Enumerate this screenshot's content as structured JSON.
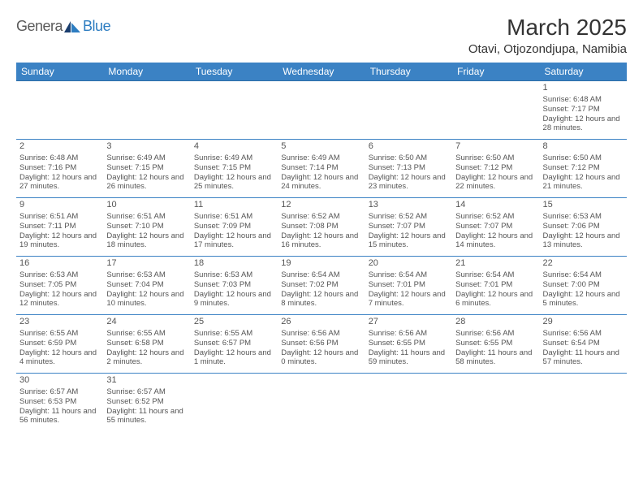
{
  "logo": {
    "text1": "Genera",
    "text2": "Blue"
  },
  "title": "March 2025",
  "location": "Otavi, Otjozondjupa, Namibia",
  "colors": {
    "header_bg": "#3b82c4",
    "header_text": "#ffffff",
    "cell_border": "#3b82c4",
    "logo_gray": "#5a5a5a",
    "logo_blue": "#2d7dc1",
    "text": "#555555"
  },
  "day_headers": [
    "Sunday",
    "Monday",
    "Tuesday",
    "Wednesday",
    "Thursday",
    "Friday",
    "Saturday"
  ],
  "weeks": [
    [
      null,
      null,
      null,
      null,
      null,
      null,
      {
        "n": "1",
        "sr": "Sunrise: 6:48 AM",
        "ss": "Sunset: 7:17 PM",
        "dl": "Daylight: 12 hours and 28 minutes."
      }
    ],
    [
      {
        "n": "2",
        "sr": "Sunrise: 6:48 AM",
        "ss": "Sunset: 7:16 PM",
        "dl": "Daylight: 12 hours and 27 minutes."
      },
      {
        "n": "3",
        "sr": "Sunrise: 6:49 AM",
        "ss": "Sunset: 7:15 PM",
        "dl": "Daylight: 12 hours and 26 minutes."
      },
      {
        "n": "4",
        "sr": "Sunrise: 6:49 AM",
        "ss": "Sunset: 7:15 PM",
        "dl": "Daylight: 12 hours and 25 minutes."
      },
      {
        "n": "5",
        "sr": "Sunrise: 6:49 AM",
        "ss": "Sunset: 7:14 PM",
        "dl": "Daylight: 12 hours and 24 minutes."
      },
      {
        "n": "6",
        "sr": "Sunrise: 6:50 AM",
        "ss": "Sunset: 7:13 PM",
        "dl": "Daylight: 12 hours and 23 minutes."
      },
      {
        "n": "7",
        "sr": "Sunrise: 6:50 AM",
        "ss": "Sunset: 7:12 PM",
        "dl": "Daylight: 12 hours and 22 minutes."
      },
      {
        "n": "8",
        "sr": "Sunrise: 6:50 AM",
        "ss": "Sunset: 7:12 PM",
        "dl": "Daylight: 12 hours and 21 minutes."
      }
    ],
    [
      {
        "n": "9",
        "sr": "Sunrise: 6:51 AM",
        "ss": "Sunset: 7:11 PM",
        "dl": "Daylight: 12 hours and 19 minutes."
      },
      {
        "n": "10",
        "sr": "Sunrise: 6:51 AM",
        "ss": "Sunset: 7:10 PM",
        "dl": "Daylight: 12 hours and 18 minutes."
      },
      {
        "n": "11",
        "sr": "Sunrise: 6:51 AM",
        "ss": "Sunset: 7:09 PM",
        "dl": "Daylight: 12 hours and 17 minutes."
      },
      {
        "n": "12",
        "sr": "Sunrise: 6:52 AM",
        "ss": "Sunset: 7:08 PM",
        "dl": "Daylight: 12 hours and 16 minutes."
      },
      {
        "n": "13",
        "sr": "Sunrise: 6:52 AM",
        "ss": "Sunset: 7:07 PM",
        "dl": "Daylight: 12 hours and 15 minutes."
      },
      {
        "n": "14",
        "sr": "Sunrise: 6:52 AM",
        "ss": "Sunset: 7:07 PM",
        "dl": "Daylight: 12 hours and 14 minutes."
      },
      {
        "n": "15",
        "sr": "Sunrise: 6:53 AM",
        "ss": "Sunset: 7:06 PM",
        "dl": "Daylight: 12 hours and 13 minutes."
      }
    ],
    [
      {
        "n": "16",
        "sr": "Sunrise: 6:53 AM",
        "ss": "Sunset: 7:05 PM",
        "dl": "Daylight: 12 hours and 12 minutes."
      },
      {
        "n": "17",
        "sr": "Sunrise: 6:53 AM",
        "ss": "Sunset: 7:04 PM",
        "dl": "Daylight: 12 hours and 10 minutes."
      },
      {
        "n": "18",
        "sr": "Sunrise: 6:53 AM",
        "ss": "Sunset: 7:03 PM",
        "dl": "Daylight: 12 hours and 9 minutes."
      },
      {
        "n": "19",
        "sr": "Sunrise: 6:54 AM",
        "ss": "Sunset: 7:02 PM",
        "dl": "Daylight: 12 hours and 8 minutes."
      },
      {
        "n": "20",
        "sr": "Sunrise: 6:54 AM",
        "ss": "Sunset: 7:01 PM",
        "dl": "Daylight: 12 hours and 7 minutes."
      },
      {
        "n": "21",
        "sr": "Sunrise: 6:54 AM",
        "ss": "Sunset: 7:01 PM",
        "dl": "Daylight: 12 hours and 6 minutes."
      },
      {
        "n": "22",
        "sr": "Sunrise: 6:54 AM",
        "ss": "Sunset: 7:00 PM",
        "dl": "Daylight: 12 hours and 5 minutes."
      }
    ],
    [
      {
        "n": "23",
        "sr": "Sunrise: 6:55 AM",
        "ss": "Sunset: 6:59 PM",
        "dl": "Daylight: 12 hours and 4 minutes."
      },
      {
        "n": "24",
        "sr": "Sunrise: 6:55 AM",
        "ss": "Sunset: 6:58 PM",
        "dl": "Daylight: 12 hours and 2 minutes."
      },
      {
        "n": "25",
        "sr": "Sunrise: 6:55 AM",
        "ss": "Sunset: 6:57 PM",
        "dl": "Daylight: 12 hours and 1 minute."
      },
      {
        "n": "26",
        "sr": "Sunrise: 6:56 AM",
        "ss": "Sunset: 6:56 PM",
        "dl": "Daylight: 12 hours and 0 minutes."
      },
      {
        "n": "27",
        "sr": "Sunrise: 6:56 AM",
        "ss": "Sunset: 6:55 PM",
        "dl": "Daylight: 11 hours and 59 minutes."
      },
      {
        "n": "28",
        "sr": "Sunrise: 6:56 AM",
        "ss": "Sunset: 6:55 PM",
        "dl": "Daylight: 11 hours and 58 minutes."
      },
      {
        "n": "29",
        "sr": "Sunrise: 6:56 AM",
        "ss": "Sunset: 6:54 PM",
        "dl": "Daylight: 11 hours and 57 minutes."
      }
    ],
    [
      {
        "n": "30",
        "sr": "Sunrise: 6:57 AM",
        "ss": "Sunset: 6:53 PM",
        "dl": "Daylight: 11 hours and 56 minutes."
      },
      {
        "n": "31",
        "sr": "Sunrise: 6:57 AM",
        "ss": "Sunset: 6:52 PM",
        "dl": "Daylight: 11 hours and 55 minutes."
      },
      null,
      null,
      null,
      null,
      null
    ]
  ]
}
